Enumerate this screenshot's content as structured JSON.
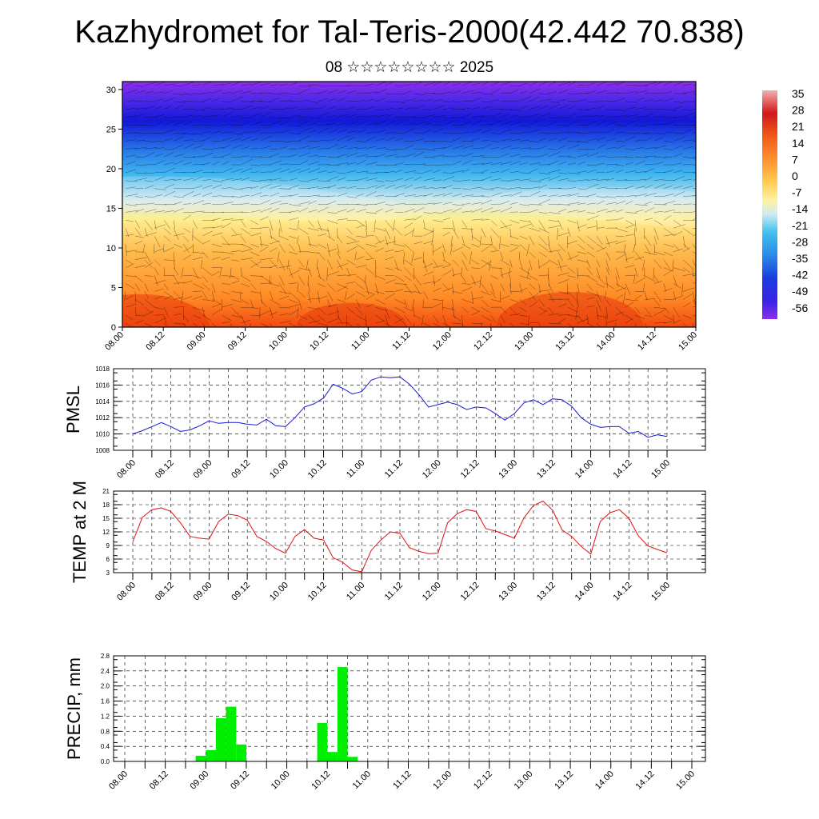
{
  "title": "Kazhydromet for Tal-Teris-2000(42.442 70.838)",
  "subtitle": "08 ☆☆☆☆☆☆☆☆ 2025",
  "colors": {
    "pmsl_line": "#1a1ad6",
    "temp_line": "#e01010",
    "precip_bar": "#00ee00",
    "grid": "#000000"
  },
  "chart_data": [
    {
      "type": "heatmap",
      "name_hint": "cross-section",
      "x_ticks": [
        "08.00",
        "08.12",
        "09.00",
        "09.12",
        "10.00",
        "10.12",
        "11.00",
        "11.12",
        "12.00",
        "12.12",
        "13.00",
        "13.12",
        "14.00",
        "14.12",
        "15.00"
      ],
      "y_ticks": [
        "0",
        "5",
        "10",
        "15",
        "20",
        "25",
        "30"
      ],
      "ylim": [
        0,
        31
      ],
      "colorbar_labels": [
        "35",
        "28",
        "21",
        "14",
        "7",
        "0",
        "-7",
        "-14",
        "-21",
        "-28",
        "-35",
        "-42",
        "-49",
        "-56"
      ],
      "colorbar_range": [
        -63,
        38
      ],
      "palette": [
        "#7f2fe8",
        "#3a1fe6",
        "#1420d8",
        "#2050e0",
        "#2090e8",
        "#40c0f0",
        "#c8e8f0",
        "#fff0a0",
        "#ffd050",
        "#ffa030",
        "#ff7020",
        "#f04010",
        "#d01010",
        "#f0a0a0"
      ]
    },
    {
      "type": "line",
      "ylabel": "PMSL",
      "ylim": [
        1008,
        1018
      ],
      "y_ticks": [
        "1008",
        "1010",
        "1012",
        "1014",
        "1016",
        "1018"
      ],
      "x_ticks": [
        "08.00",
        "08.12",
        "09.00",
        "09.12",
        "10.00",
        "10.12",
        "11.00",
        "11.12",
        "12.00",
        "12.12",
        "13.00",
        "13.12",
        "14.00",
        "14.12",
        "15.00"
      ],
      "series": [
        {
          "x_step_hours": 3,
          "values": [
            1010.0,
            1010.4,
            1010.9,
            1011.4,
            1010.9,
            1010.3,
            1010.5,
            1011.0,
            1011.6,
            1011.3,
            1011.4,
            1011.4,
            1011.2,
            1011.1,
            1011.8,
            1011.0,
            1010.9,
            1012.0,
            1013.3,
            1013.7,
            1014.4,
            1016.1,
            1015.6,
            1014.9,
            1015.2,
            1016.6,
            1017.0,
            1016.9,
            1017.0,
            1016.1,
            1014.8,
            1013.3,
            1013.6,
            1013.9,
            1013.6,
            1013.0,
            1013.3,
            1013.2,
            1012.5,
            1011.7,
            1012.5,
            1013.8,
            1014.2,
            1013.6,
            1014.3,
            1014.2,
            1013.4,
            1012.0,
            1011.2,
            1010.8,
            1010.9,
            1010.9,
            1010.1,
            1010.3,
            1009.6,
            1009.9,
            1009.7
          ]
        }
      ]
    },
    {
      "type": "line",
      "ylabel": "TEMP at 2 M",
      "ylim": [
        3,
        21
      ],
      "y_ticks": [
        "3",
        "6",
        "9",
        "12",
        "15",
        "18",
        "21"
      ],
      "x_ticks": [
        "08.00",
        "08.12",
        "09.00",
        "09.12",
        "10.00",
        "10.12",
        "11.00",
        "11.12",
        "12.00",
        "12.12",
        "13.00",
        "13.12",
        "14.00",
        "14.12",
        "15.00"
      ],
      "series": [
        {
          "x_step_hours": 3,
          "values": [
            9.8,
            15.2,
            16.9,
            17.3,
            16.5,
            14.0,
            11.0,
            10.6,
            10.4,
            14.3,
            15.9,
            15.6,
            14.6,
            11.0,
            9.9,
            8.3,
            7.3,
            11.0,
            12.5,
            10.6,
            10.2,
            6.3,
            5.3,
            3.6,
            3.2,
            7.9,
            10.2,
            12.0,
            11.7,
            8.5,
            7.7,
            7.2,
            7.3,
            14.0,
            16.0,
            16.9,
            16.5,
            12.7,
            12.2,
            11.4,
            10.6,
            15.1,
            17.8,
            18.8,
            16.8,
            12.4,
            11.0,
            8.8,
            7.1,
            14.3,
            16.2,
            16.9,
            15.0,
            11.1,
            8.9,
            8.1,
            7.4
          ]
        }
      ]
    },
    {
      "type": "bar",
      "ylabel": "PRECIP, mm",
      "ylim": [
        0,
        2.8
      ],
      "y_ticks": [
        "0.0",
        "0.4",
        "0.8",
        "1.2",
        "1.6",
        "2.0",
        "2.4",
        "2.8"
      ],
      "x_ticks": [
        "08.00",
        "08.12",
        "09.00",
        "09.12",
        "10.00",
        "10.12",
        "11.00",
        "11.12",
        "12.00",
        "12.12",
        "13.00",
        "13.12",
        "14.00",
        "14.12",
        "15.00"
      ],
      "bars": [
        {
          "start": "08.21",
          "value": 0.15
        },
        {
          "start": "09.00",
          "value": 0.3
        },
        {
          "start": "09.03",
          "value": 1.15
        },
        {
          "start": "09.06",
          "value": 1.45
        },
        {
          "start": "09.09",
          "value": 0.45
        },
        {
          "start": "10.09",
          "value": 1.02
        },
        {
          "start": "10.12",
          "value": 0.25
        },
        {
          "start": "10.15",
          "value": 2.5
        },
        {
          "start": "10.18",
          "value": 0.12
        }
      ]
    }
  ]
}
